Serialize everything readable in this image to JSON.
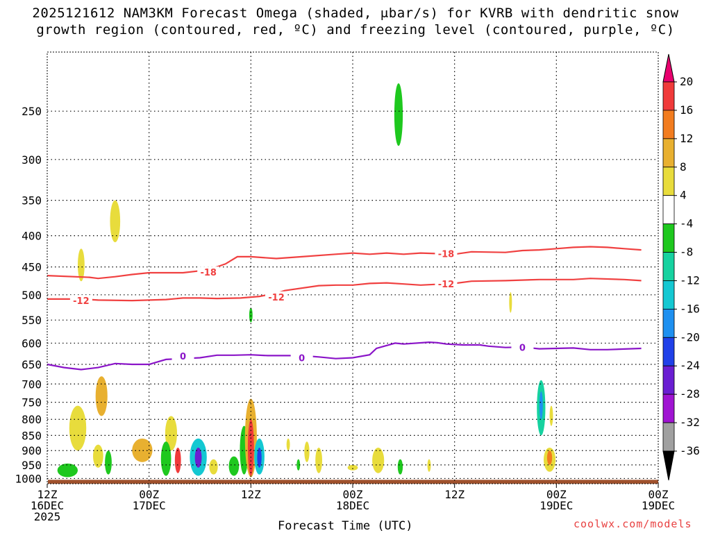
{
  "header": {
    "title_line1": "2025121612 NAM3KM Forecast Omega (shaded, μbar/s) for KVRB with dendritic snow",
    "title_line2": "growth region (contoured, red, ºC) and freezing level (contoured, purple, ºC)"
  },
  "footer": {
    "xlabel": "Forecast Time (UTC)",
    "credit": "coolwx.com/models"
  },
  "chart_data": {
    "type": "time-height",
    "xlabel": "Forecast Time (UTC)",
    "x_range_hours": [
      0,
      36
    ],
    "y_scale": "pressure-log",
    "y_range_hpa": [
      1020,
      200
    ],
    "y_ticks": [
      250,
      300,
      350,
      400,
      450,
      500,
      550,
      600,
      650,
      700,
      750,
      800,
      850,
      900,
      950,
      1000
    ],
    "x_ticks": [
      {
        "h": 0,
        "l1": "12Z",
        "l2": "16DEC",
        "l3": "2025"
      },
      {
        "h": 6,
        "l1": "00Z",
        "l2": "17DEC",
        "l3": ""
      },
      {
        "h": 12,
        "l1": "12Z",
        "l2": "",
        "l3": ""
      },
      {
        "h": 18,
        "l1": "00Z",
        "l2": "18DEC",
        "l3": ""
      },
      {
        "h": 24,
        "l1": "12Z",
        "l2": "",
        "l3": ""
      },
      {
        "h": 30,
        "l1": "00Z",
        "l2": "19DEC",
        "l3": ""
      }
    ],
    "colorbar": {
      "labels": [
        "20",
        "16",
        "12",
        "8",
        "4",
        "-4",
        "-8",
        "-12",
        "-16",
        "-20",
        "-24",
        "-28",
        "-32",
        "-36"
      ],
      "colors": [
        "#e8006e",
        "#f03a3a",
        "#f27c1f",
        "#e8b030",
        "#e8dc3c",
        "#ffffff",
        "#1ec81e",
        "#16d2a0",
        "#14c8d2",
        "#1e90f0",
        "#2040e8",
        "#6a1ed2",
        "#a014d2",
        "#a0a0a0",
        "#000000"
      ]
    },
    "contours": [
      {
        "label": "-18",
        "color": "#f04040",
        "points": [
          [
            0,
            465
          ],
          [
            2.5,
            468
          ],
          [
            3,
            470
          ],
          [
            4,
            467
          ],
          [
            5,
            463
          ],
          [
            6,
            460
          ],
          [
            8,
            460
          ],
          [
            9.5,
            455
          ],
          [
            10.5,
            445
          ],
          [
            11.2,
            433
          ],
          [
            12,
            433
          ],
          [
            13.5,
            436
          ],
          [
            15,
            433
          ],
          [
            17,
            429
          ],
          [
            18,
            427
          ],
          [
            19,
            429
          ],
          [
            20,
            427
          ],
          [
            21,
            429
          ],
          [
            22,
            427
          ],
          [
            24,
            429
          ],
          [
            25,
            425
          ],
          [
            27,
            426
          ],
          [
            28,
            423
          ],
          [
            29,
            422
          ],
          [
            30,
            420
          ],
          [
            31,
            418
          ],
          [
            32,
            417
          ],
          [
            33,
            418
          ],
          [
            34,
            420
          ],
          [
            35,
            422
          ]
        ]
      },
      {
        "label": "-12",
        "color": "#f04040",
        "points": [
          [
            0,
            508
          ],
          [
            2,
            508
          ],
          [
            3,
            510
          ],
          [
            5,
            511
          ],
          [
            7,
            509
          ],
          [
            8,
            506
          ],
          [
            9,
            506
          ],
          [
            10,
            507
          ],
          [
            11.4,
            506
          ],
          [
            12.5,
            503
          ],
          [
            13.5,
            497
          ],
          [
            14,
            492
          ],
          [
            16,
            483
          ],
          [
            17,
            482
          ],
          [
            18,
            482
          ],
          [
            19,
            479
          ],
          [
            20,
            478
          ],
          [
            21,
            480
          ],
          [
            22,
            482
          ],
          [
            24,
            479
          ],
          [
            25,
            475
          ],
          [
            27,
            474
          ],
          [
            29,
            472
          ],
          [
            31,
            472
          ],
          [
            32,
            470
          ],
          [
            34,
            472
          ],
          [
            35,
            474
          ]
        ]
      },
      {
        "label": "0",
        "color": "#8a14c8",
        "points": [
          [
            0,
            650
          ],
          [
            1,
            658
          ],
          [
            2,
            663
          ],
          [
            3,
            658
          ],
          [
            4,
            648
          ],
          [
            5,
            650
          ],
          [
            6,
            650
          ],
          [
            7,
            638
          ],
          [
            8,
            636
          ],
          [
            9,
            634
          ],
          [
            10,
            628
          ],
          [
            11,
            628
          ],
          [
            12,
            627
          ],
          [
            13,
            629
          ],
          [
            15,
            629
          ],
          [
            16,
            632
          ],
          [
            17,
            636
          ],
          [
            18,
            634
          ],
          [
            19,
            627
          ],
          [
            19.4,
            612
          ],
          [
            20.5,
            600
          ],
          [
            21,
            602
          ],
          [
            22.5,
            598
          ],
          [
            23,
            599
          ],
          [
            23.5,
            602
          ],
          [
            24.5,
            604
          ],
          [
            25.5,
            604
          ],
          [
            26,
            607
          ],
          [
            27,
            610
          ],
          [
            28,
            609
          ],
          [
            29,
            613
          ],
          [
            30,
            612
          ],
          [
            31,
            611
          ],
          [
            32,
            615
          ],
          [
            33,
            615
          ],
          [
            35,
            612
          ]
        ]
      }
    ],
    "contour_labels": [
      {
        "label": "-18",
        "h": 9.5,
        "p": 459,
        "color": "#f04040"
      },
      {
        "label": "-18",
        "h": 23.5,
        "p": 428,
        "color": "#f04040"
      },
      {
        "label": "-12",
        "h": 2.0,
        "p": 511,
        "color": "#f04040"
      },
      {
        "label": "-12",
        "h": 13.5,
        "p": 504,
        "color": "#f04040"
      },
      {
        "label": "-12",
        "h": 23.5,
        "p": 480,
        "color": "#f04040"
      },
      {
        "label": "0",
        "h": 8.0,
        "p": 630,
        "color": "#8a14c8"
      },
      {
        "label": "0",
        "h": 15.0,
        "p": 634,
        "color": "#8a14c8"
      },
      {
        "label": "0",
        "h": 28.0,
        "p": 610,
        "color": "#8a14c8"
      }
    ],
    "omega_blobs": [
      {
        "value": -8,
        "h": 20.7,
        "p": 255,
        "rh": 0.25,
        "rp_top": 225,
        "rp_bot": 285
      },
      {
        "value": 4,
        "h": 4.0,
        "p": 378,
        "rh": 0.3,
        "rp_top": 350,
        "rp_bot": 410
      },
      {
        "value": 4,
        "h": 2.0,
        "p": 445,
        "rh": 0.2,
        "rp_top": 420,
        "rp_bot": 475
      },
      {
        "value": -8,
        "h": 12.0,
        "p": 540,
        "rh": 0.1,
        "rp_top": 525,
        "rp_bot": 555
      },
      {
        "value": 4,
        "h": 27.3,
        "p": 515,
        "rh": 0.05,
        "rp_top": 495,
        "rp_bot": 535
      },
      {
        "value": 4,
        "h": 1.8,
        "p": 830,
        "rh": 0.5,
        "rp_top": 760,
        "rp_bot": 900
      },
      {
        "value": 8,
        "h": 3.2,
        "p": 720,
        "rh": 0.35,
        "rp_top": 680,
        "rp_bot": 790
      },
      {
        "value": 4,
        "h": 3.0,
        "p": 920,
        "rh": 0.3,
        "rp_top": 880,
        "rp_bot": 960
      },
      {
        "value": -8,
        "h": 1.2,
        "p": 970,
        "rh": 0.6,
        "rp_top": 945,
        "rp_bot": 995
      },
      {
        "value": -8,
        "h": 3.6,
        "p": 950,
        "rh": 0.2,
        "rp_top": 900,
        "rp_bot": 985
      },
      {
        "value": 8,
        "h": 5.6,
        "p": 890,
        "rh": 0.6,
        "rp_top": 860,
        "rp_bot": 940
      },
      {
        "value": 4,
        "h": 7.3,
        "p": 850,
        "rh": 0.35,
        "rp_top": 790,
        "rp_bot": 900
      },
      {
        "value": -8,
        "h": 7.0,
        "p": 930,
        "rh": 0.3,
        "rp_top": 870,
        "rp_bot": 990
      },
      {
        "value": 16,
        "h": 7.7,
        "p": 930,
        "rh": 0.18,
        "rp_top": 890,
        "rp_bot": 980
      },
      {
        "value": -16,
        "h": 8.9,
        "p": 925,
        "rh": 0.5,
        "rp_top": 860,
        "rp_bot": 990
      },
      {
        "value": -28,
        "h": 8.9,
        "p": 925,
        "rh": 0.2,
        "rp_top": 890,
        "rp_bot": 960
      },
      {
        "value": 4,
        "h": 9.8,
        "p": 955,
        "rh": 0.25,
        "rp_top": 930,
        "rp_bot": 985
      },
      {
        "value": -8,
        "h": 11.0,
        "p": 955,
        "rh": 0.3,
        "rp_top": 920,
        "rp_bot": 990
      },
      {
        "value": -8,
        "h": 11.6,
        "p": 900,
        "rh": 0.25,
        "rp_top": 820,
        "rp_bot": 985
      },
      {
        "value": 8,
        "h": 12.0,
        "p": 880,
        "rh": 0.35,
        "rp_top": 740,
        "rp_bot": 995
      },
      {
        "value": 16,
        "h": 12.0,
        "p": 900,
        "rh": 0.18,
        "rp_top": 800,
        "rp_bot": 990
      },
      {
        "value": -16,
        "h": 12.5,
        "p": 920,
        "rh": 0.3,
        "rp_top": 860,
        "rp_bot": 985
      },
      {
        "value": -24,
        "h": 12.5,
        "p": 920,
        "rh": 0.13,
        "rp_top": 890,
        "rp_bot": 960
      },
      {
        "value": 4,
        "h": 14.2,
        "p": 880,
        "rh": 0.1,
        "rp_top": 860,
        "rp_bot": 900
      },
      {
        "value": -8,
        "h": 14.8,
        "p": 950,
        "rh": 0.1,
        "rp_top": 930,
        "rp_bot": 970
      },
      {
        "value": 4,
        "h": 15.3,
        "p": 900,
        "rh": 0.15,
        "rp_top": 870,
        "rp_bot": 940
      },
      {
        "value": 4,
        "h": 16.0,
        "p": 940,
        "rh": 0.2,
        "rp_top": 890,
        "rp_bot": 980
      },
      {
        "value": 4,
        "h": 18.0,
        "p": 960,
        "rh": 0.3,
        "rp_top": 950,
        "rp_bot": 970
      },
      {
        "value": 4,
        "h": 19.5,
        "p": 940,
        "rh": 0.35,
        "rp_top": 890,
        "rp_bot": 980
      },
      {
        "value": -8,
        "h": 20.8,
        "p": 955,
        "rh": 0.15,
        "rp_top": 930,
        "rp_bot": 985
      },
      {
        "value": 4,
        "h": 22.5,
        "p": 950,
        "rh": 0.1,
        "rp_top": 930,
        "rp_bot": 975
      },
      {
        "value": -12,
        "h": 29.1,
        "p": 760,
        "rh": 0.25,
        "rp_top": 690,
        "rp_bot": 850
      },
      {
        "value": -20,
        "h": 29.1,
        "p": 760,
        "rh": 0.1,
        "rp_top": 720,
        "rp_bot": 800
      },
      {
        "value": 4,
        "h": 29.7,
        "p": 790,
        "rh": 0.1,
        "rp_top": 760,
        "rp_bot": 820
      },
      {
        "value": 4,
        "h": 29.6,
        "p": 930,
        "rh": 0.35,
        "rp_top": 890,
        "rp_bot": 975
      },
      {
        "value": 12,
        "h": 29.6,
        "p": 920,
        "rh": 0.15,
        "rp_top": 900,
        "rp_bot": 950
      }
    ],
    "ground_p": 1020,
    "ground_color": "#a0522d",
    "grid": true
  }
}
